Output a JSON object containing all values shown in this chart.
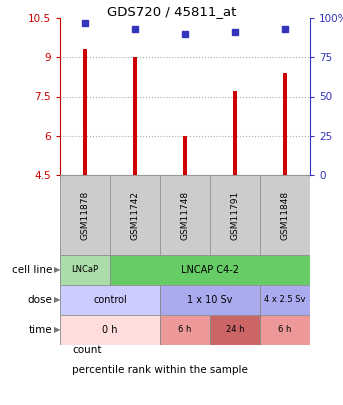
{
  "title": "GDS720 / 45811_at",
  "samples": [
    "GSM11878",
    "GSM11742",
    "GSM11748",
    "GSM11791",
    "GSM11848"
  ],
  "count_values": [
    9.3,
    9.0,
    6.0,
    7.7,
    8.4
  ],
  "percentile_values": [
    97,
    93,
    90,
    91,
    93
  ],
  "ylim_left": [
    4.5,
    10.5
  ],
  "ylim_right": [
    0,
    100
  ],
  "yticks_left": [
    4.5,
    6.0,
    7.5,
    9.0,
    10.5
  ],
  "yticks_right": [
    0,
    25,
    50,
    75,
    100
  ],
  "ytick_labels_left": [
    "4.5",
    "6",
    "7.5",
    "9",
    "10.5"
  ],
  "ytick_labels_right": [
    "0",
    "25",
    "50",
    "75",
    "100%"
  ],
  "bar_color": "#cc0000",
  "dot_color": "#3333bb",
  "grid_color": "#aaaaaa",
  "grid_linestyle": "dotted",
  "cell_line_row": {
    "label": "cell line",
    "groups": [
      {
        "text": "LNCaP",
        "span": [
          0,
          1
        ],
        "color": "#aaddaa"
      },
      {
        "text": "LNCAP C4-2",
        "span": [
          1,
          5
        ],
        "color": "#66cc66"
      }
    ]
  },
  "dose_row": {
    "label": "dose",
    "groups": [
      {
        "text": "control",
        "span": [
          0,
          2
        ],
        "color": "#ccccff"
      },
      {
        "text": "1 x 10 Sv",
        "span": [
          2,
          4
        ],
        "color": "#aaaaee"
      },
      {
        "text": "4 x 2.5 Sv",
        "span": [
          4,
          5
        ],
        "color": "#aaaaee"
      }
    ]
  },
  "time_row": {
    "label": "time",
    "groups": [
      {
        "text": "0 h",
        "span": [
          0,
          2
        ],
        "color": "#ffdddd"
      },
      {
        "text": "6 h",
        "span": [
          2,
          3
        ],
        "color": "#ee9999"
      },
      {
        "text": "24 h",
        "span": [
          3,
          4
        ],
        "color": "#cc6666"
      },
      {
        "text": "6 h",
        "span": [
          4,
          5
        ],
        "color": "#ee9999"
      }
    ]
  },
  "legend_items": [
    {
      "label": "count",
      "color": "#cc0000"
    },
    {
      "label": "percentile rank within the sample",
      "color": "#3333bb"
    }
  ],
  "bar_bottom": 4.5,
  "sample_box_color": "#cccccc",
  "sample_box_edge": "#999999",
  "spine_color": "#000000",
  "left_axis_color": "#cc0000",
  "right_axis_color": "#3333bb"
}
